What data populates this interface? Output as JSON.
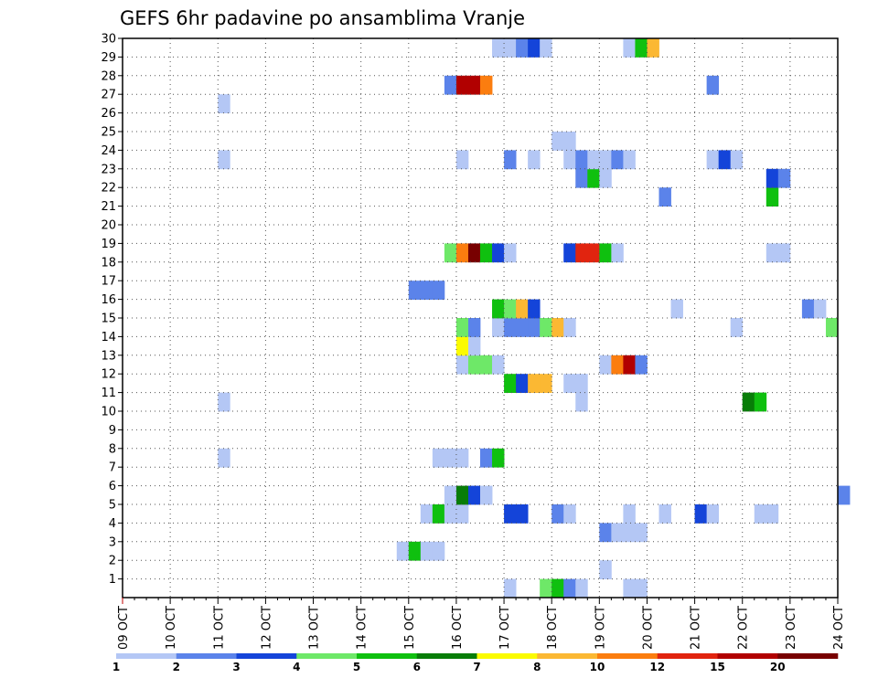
{
  "chart_data": {
    "type": "heatmap",
    "title": "GEFS 6hr padavine po ansamblima Vranje",
    "xlabel": "",
    "ylabel": "",
    "x_tick_labels": [
      "09 OCT",
      "10 OCT",
      "11 OCT",
      "12 OCT",
      "13 OCT",
      "14 OCT",
      "15 OCT",
      "16 OCT",
      "17 OCT",
      "18 OCT",
      "19 OCT",
      "20 OCT",
      "21 OCT",
      "22 OCT",
      "23 OCT",
      "24 OCT"
    ],
    "y_tick_labels": [
      "1",
      "2",
      "3",
      "4",
      "5",
      "6",
      "7",
      "8",
      "9",
      "10",
      "11",
      "12",
      "13",
      "14",
      "15",
      "16",
      "17",
      "18",
      "19",
      "20",
      "21",
      "22",
      "23",
      "24",
      "25",
      "26",
      "27",
      "28",
      "29",
      "30"
    ],
    "x_range_steps": [
      0,
      60
    ],
    "steps_per_day": 4,
    "y_range": [
      0,
      30
    ],
    "legend_levels": [
      1,
      2,
      3,
      4,
      5,
      6,
      7,
      8,
      10,
      12,
      15,
      20
    ],
    "legend_label_values": [
      "1",
      "2",
      "3",
      "4",
      "5",
      "6",
      "7",
      "8",
      "10",
      "12",
      "15",
      "20"
    ],
    "colors": [
      "#b4c7f5",
      "#5b83ea",
      "#1444d9",
      "#6ee868",
      "#0fc00f",
      "#087d08",
      "#fbfb00",
      "#fbb833",
      "#fb7d0f",
      "#e1240f",
      "#b10000",
      "#780000"
    ],
    "cells": [
      [
        32,
        0,
        0
      ],
      [
        35,
        0,
        3
      ],
      [
        36,
        0,
        4
      ],
      [
        37,
        0,
        1
      ],
      [
        38,
        0,
        0
      ],
      [
        42,
        0,
        0
      ],
      [
        43,
        0,
        0
      ],
      [
        40,
        1,
        0
      ],
      [
        23,
        2,
        0
      ],
      [
        24,
        2,
        4
      ],
      [
        25,
        2,
        0
      ],
      [
        26,
        2,
        0
      ],
      [
        40,
        3,
        1
      ],
      [
        41,
        3,
        0
      ],
      [
        42,
        3,
        0
      ],
      [
        43,
        3,
        0
      ],
      [
        25,
        4,
        0
      ],
      [
        26,
        4,
        4
      ],
      [
        27,
        4,
        0
      ],
      [
        28,
        4,
        0
      ],
      [
        32,
        4,
        2
      ],
      [
        33,
        4,
        2
      ],
      [
        36,
        4,
        1
      ],
      [
        37,
        4,
        0
      ],
      [
        42,
        4,
        0
      ],
      [
        45,
        4,
        0
      ],
      [
        48,
        4,
        2
      ],
      [
        49,
        4,
        0
      ],
      [
        53,
        4,
        0
      ],
      [
        54,
        4,
        0
      ],
      [
        27,
        5,
        0
      ],
      [
        28,
        5,
        5
      ],
      [
        29,
        5,
        2
      ],
      [
        30,
        5,
        0
      ],
      [
        60,
        5,
        1
      ],
      [
        26,
        7,
        0
      ],
      [
        27,
        7,
        0
      ],
      [
        28,
        7,
        0
      ],
      [
        30,
        7,
        1
      ],
      [
        31,
        7,
        4
      ],
      [
        8,
        7,
        0
      ],
      [
        8,
        10,
        0
      ],
      [
        38,
        10,
        0
      ],
      [
        52,
        10,
        5
      ],
      [
        53,
        10,
        4
      ],
      [
        32,
        11,
        4
      ],
      [
        33,
        11,
        2
      ],
      [
        34,
        11,
        7
      ],
      [
        35,
        11,
        7
      ],
      [
        37,
        11,
        0
      ],
      [
        38,
        11,
        0
      ],
      [
        28,
        12,
        0
      ],
      [
        29,
        12,
        3
      ],
      [
        30,
        12,
        3
      ],
      [
        31,
        12,
        0
      ],
      [
        40,
        12,
        0
      ],
      [
        41,
        12,
        8
      ],
      [
        42,
        12,
        10
      ],
      [
        43,
        12,
        1
      ],
      [
        28,
        13,
        6
      ],
      [
        29,
        13,
        0
      ],
      [
        28,
        14,
        3
      ],
      [
        29,
        14,
        1
      ],
      [
        31,
        14,
        0
      ],
      [
        32,
        14,
        1
      ],
      [
        33,
        14,
        1
      ],
      [
        34,
        14,
        1
      ],
      [
        35,
        14,
        3
      ],
      [
        36,
        14,
        7
      ],
      [
        37,
        14,
        0
      ],
      [
        51,
        14,
        0
      ],
      [
        59,
        14,
        3
      ],
      [
        31,
        15,
        4
      ],
      [
        32,
        15,
        3
      ],
      [
        33,
        15,
        7
      ],
      [
        34,
        15,
        2
      ],
      [
        46,
        15,
        0
      ],
      [
        57,
        15,
        1
      ],
      [
        58,
        15,
        0
      ],
      [
        24,
        16,
        1
      ],
      [
        25,
        16,
        1
      ],
      [
        26,
        16,
        1
      ],
      [
        27,
        18,
        3
      ],
      [
        28,
        18,
        8
      ],
      [
        29,
        18,
        11
      ],
      [
        30,
        18,
        4
      ],
      [
        31,
        18,
        2
      ],
      [
        32,
        18,
        0
      ],
      [
        37,
        18,
        2
      ],
      [
        38,
        18,
        9
      ],
      [
        39,
        18,
        9
      ],
      [
        40,
        18,
        4
      ],
      [
        41,
        18,
        0
      ],
      [
        54,
        18,
        0
      ],
      [
        55,
        18,
        0
      ],
      [
        45,
        21,
        1
      ],
      [
        54,
        21,
        4
      ],
      [
        38,
        22,
        1
      ],
      [
        39,
        22,
        4
      ],
      [
        40,
        22,
        0
      ],
      [
        54,
        22,
        2
      ],
      [
        55,
        22,
        1
      ],
      [
        8,
        23,
        0
      ],
      [
        28,
        23,
        0
      ],
      [
        32,
        23,
        1
      ],
      [
        34,
        23,
        0
      ],
      [
        37,
        23,
        0
      ],
      [
        38,
        23,
        1
      ],
      [
        39,
        23,
        0
      ],
      [
        40,
        23,
        0
      ],
      [
        41,
        23,
        1
      ],
      [
        42,
        23,
        0
      ],
      [
        49,
        23,
        0
      ],
      [
        50,
        23,
        2
      ],
      [
        51,
        23,
        0
      ],
      [
        36,
        24,
        0
      ],
      [
        37,
        24,
        0
      ],
      [
        8,
        26,
        0
      ],
      [
        27,
        27,
        1
      ],
      [
        28,
        27,
        10
      ],
      [
        29,
        27,
        10
      ],
      [
        30,
        27,
        8
      ],
      [
        49,
        27,
        1
      ],
      [
        31,
        29,
        0
      ],
      [
        32,
        29,
        0
      ],
      [
        33,
        29,
        1
      ],
      [
        34,
        29,
        2
      ],
      [
        35,
        29,
        0
      ],
      [
        42,
        29,
        0
      ],
      [
        43,
        29,
        4
      ],
      [
        44,
        29,
        7
      ]
    ]
  }
}
